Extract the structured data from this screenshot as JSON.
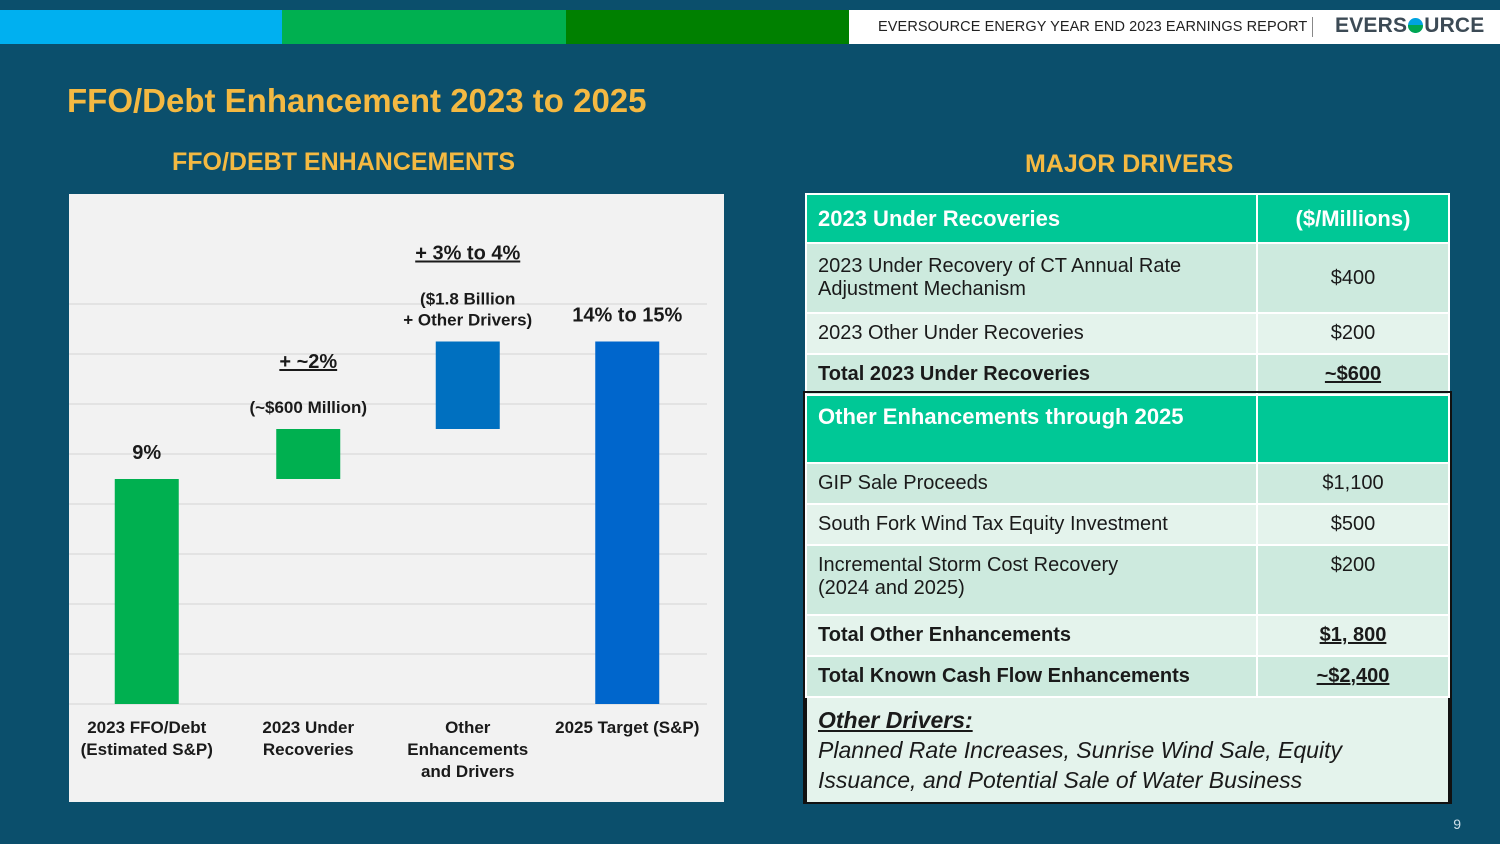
{
  "header": {
    "report_title": "EVERSOURCE ENERGY YEAR END 2023 EARNINGS REPORT",
    "logo_left": "EVERS",
    "logo_right": "URCE",
    "bar_colors": [
      "#00b0f0",
      "#00b050",
      "#008000"
    ]
  },
  "page_title": "FFO/Debt Enhancement 2023 to 2025",
  "left_section_title": "FFO/DEBT ENHANCEMENTS",
  "right_section_title": "MAJOR DRIVERS",
  "chart_data": {
    "type": "bar",
    "subtype": "waterfall",
    "categories": [
      "2023 FFO/Debt\n(Estimated S&P)",
      "2023 Under\nRecoveries",
      "Other\nEnhancements\nand Drivers",
      "2025 Target (S&P)"
    ],
    "values": [
      9,
      2,
      3.5,
      14.5
    ],
    "bases": [
      0,
      9,
      11,
      0
    ],
    "value_labels": [
      "9%",
      "+ ~2%",
      "+ 3% to 4%",
      "14% to 15%"
    ],
    "sub_labels": [
      "",
      "(~$600 Million)",
      "($1.8 Billion\n+ Other Drivers)",
      ""
    ],
    "colors": [
      "#00b050",
      "#00b050",
      "#0070c0",
      "#0066cc"
    ],
    "ylim": [
      0,
      16
    ],
    "grid": true,
    "title": "",
    "xlabel": "",
    "ylabel": ""
  },
  "table": {
    "section1": {
      "header": "2023 Under Recoveries",
      "unit_header": "($/Millions)",
      "rows": [
        {
          "label": "2023 Under Recovery of CT Annual Rate Adjustment Mechanism",
          "value": "$400"
        },
        {
          "label": "2023 Other Under Recoveries",
          "value": "$200"
        }
      ],
      "total": {
        "label": "Total 2023 Under Recoveries",
        "value": "~$600"
      }
    },
    "section2": {
      "header": "Other Enhancements through 2025",
      "rows": [
        {
          "label": "GIP Sale Proceeds",
          "value": "$1,100"
        },
        {
          "label": "South Fork Wind Tax Equity Investment",
          "value": "$500"
        },
        {
          "label": "Incremental Storm Cost Recovery\n(2024 and 2025)",
          "value": "$200"
        }
      ],
      "total": {
        "label": "Total Other Enhancements",
        "value": "$1, 800"
      },
      "grand_total": {
        "label": "Total Known Cash Flow Enhancements",
        "value": "~$2,400"
      }
    },
    "notes": {
      "heading": "Other Drivers:",
      "text": "Planned Rate Increases, Sunrise Wind Sale, Equity Issuance, and Potential Sale of Water Business"
    }
  },
  "page_number": "9"
}
